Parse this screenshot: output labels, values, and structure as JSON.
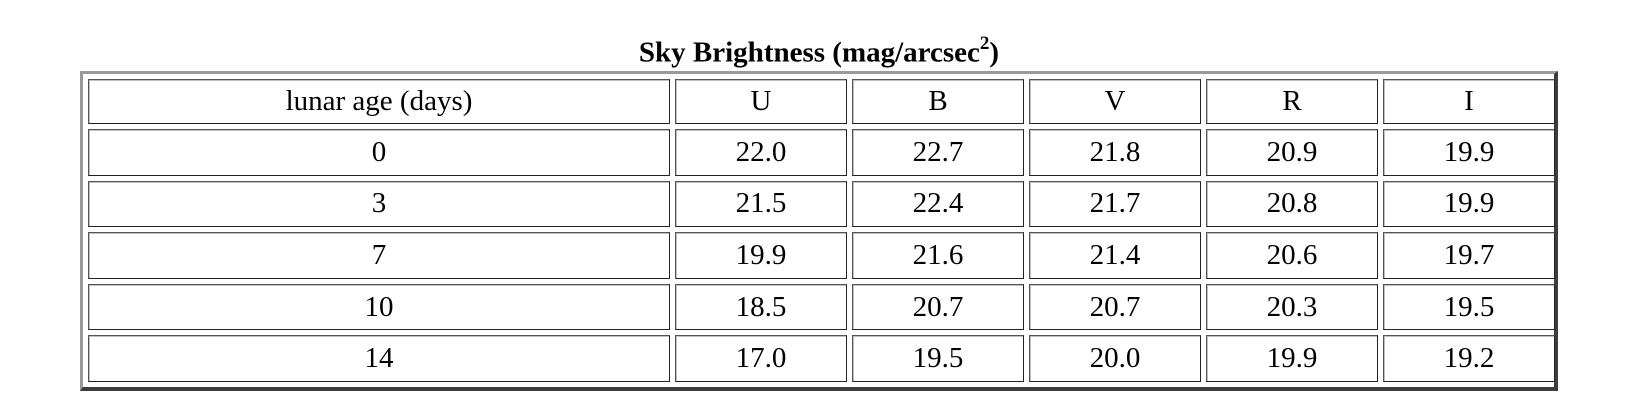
{
  "caption": {
    "title": "Sky Brightness (mag/arcsec",
    "superscript": "2",
    "close": ")"
  },
  "table": {
    "headers": [
      "lunar age (days)",
      "U",
      "B",
      "V",
      "R",
      "I"
    ],
    "rows": [
      [
        "0",
        "22.0",
        "22.7",
        "21.8",
        "20.9",
        "19.9"
      ],
      [
        "3",
        "21.5",
        "22.4",
        "21.7",
        "20.8",
        "19.9"
      ],
      [
        "7",
        "19.9",
        "21.6",
        "21.4",
        "20.6",
        "19.7"
      ],
      [
        "10",
        "18.5",
        "20.7",
        "20.7",
        "20.3",
        "19.5"
      ],
      [
        "14",
        "17.0",
        "19.5",
        "20.0",
        "19.9",
        "19.2"
      ]
    ]
  }
}
